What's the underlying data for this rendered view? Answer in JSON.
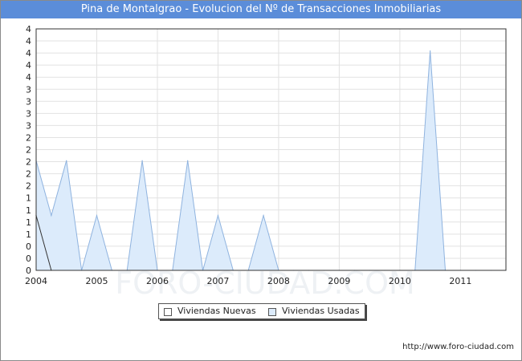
{
  "chart_data": {
    "type": "area",
    "title": "Pina de Montalgrao - Evolucion del Nº de Transacciones Inmobiliarias",
    "x_tick_labels": [
      "2004",
      "2005",
      "2006",
      "2007",
      "2008",
      "2009",
      "2010",
      "2011"
    ],
    "y_tick_labels": [
      "0",
      "0",
      "0",
      "1",
      "1",
      "1",
      "1",
      "2",
      "2",
      "2",
      "2",
      "2",
      "3",
      "3",
      "3",
      "3",
      "4",
      "4",
      "4",
      "4",
      "4"
    ],
    "xlim": [
      2004.0,
      2011.75
    ],
    "ylim": [
      0,
      4.4
    ],
    "grid": true,
    "legend_position": "bottom-center",
    "series": [
      {
        "name": "Viviendas Nuevas",
        "color": "#ffffff",
        "points": [
          [
            2004.0,
            1
          ],
          [
            2004.25,
            0
          ]
        ]
      },
      {
        "name": "Viviendas Usadas",
        "color": "#dcebfb",
        "points": [
          [
            2004.0,
            2
          ],
          [
            2004.25,
            1
          ],
          [
            2004.5,
            2
          ],
          [
            2004.75,
            0
          ],
          [
            2005.0,
            1
          ],
          [
            2005.25,
            0
          ],
          [
            2005.5,
            0
          ],
          [
            2005.75,
            2
          ],
          [
            2006.0,
            0
          ],
          [
            2006.25,
            0
          ],
          [
            2006.5,
            2
          ],
          [
            2006.75,
            0
          ],
          [
            2007.0,
            1
          ],
          [
            2007.25,
            0
          ],
          [
            2007.5,
            0
          ],
          [
            2007.75,
            1
          ],
          [
            2008.0,
            0
          ],
          [
            2008.25,
            0
          ],
          [
            2008.5,
            0
          ],
          [
            2008.75,
            0
          ],
          [
            2009.0,
            0
          ],
          [
            2009.25,
            0
          ],
          [
            2009.5,
            0
          ],
          [
            2009.75,
            0
          ],
          [
            2010.0,
            0
          ],
          [
            2010.25,
            0
          ],
          [
            2010.5,
            4
          ],
          [
            2010.75,
            0
          ],
          [
            2011.0,
            0
          ],
          [
            2011.25,
            0
          ],
          [
            2011.5,
            0
          ],
          [
            2011.75,
            0
          ]
        ]
      }
    ]
  },
  "legend": {
    "items": [
      {
        "label": "Viviendas Nuevas"
      },
      {
        "label": "Viviendas Usadas"
      }
    ]
  },
  "footer": {
    "url_text": "http://www.foro-ciudad.com"
  },
  "watermark": "FORO-CIUDAD.COM"
}
